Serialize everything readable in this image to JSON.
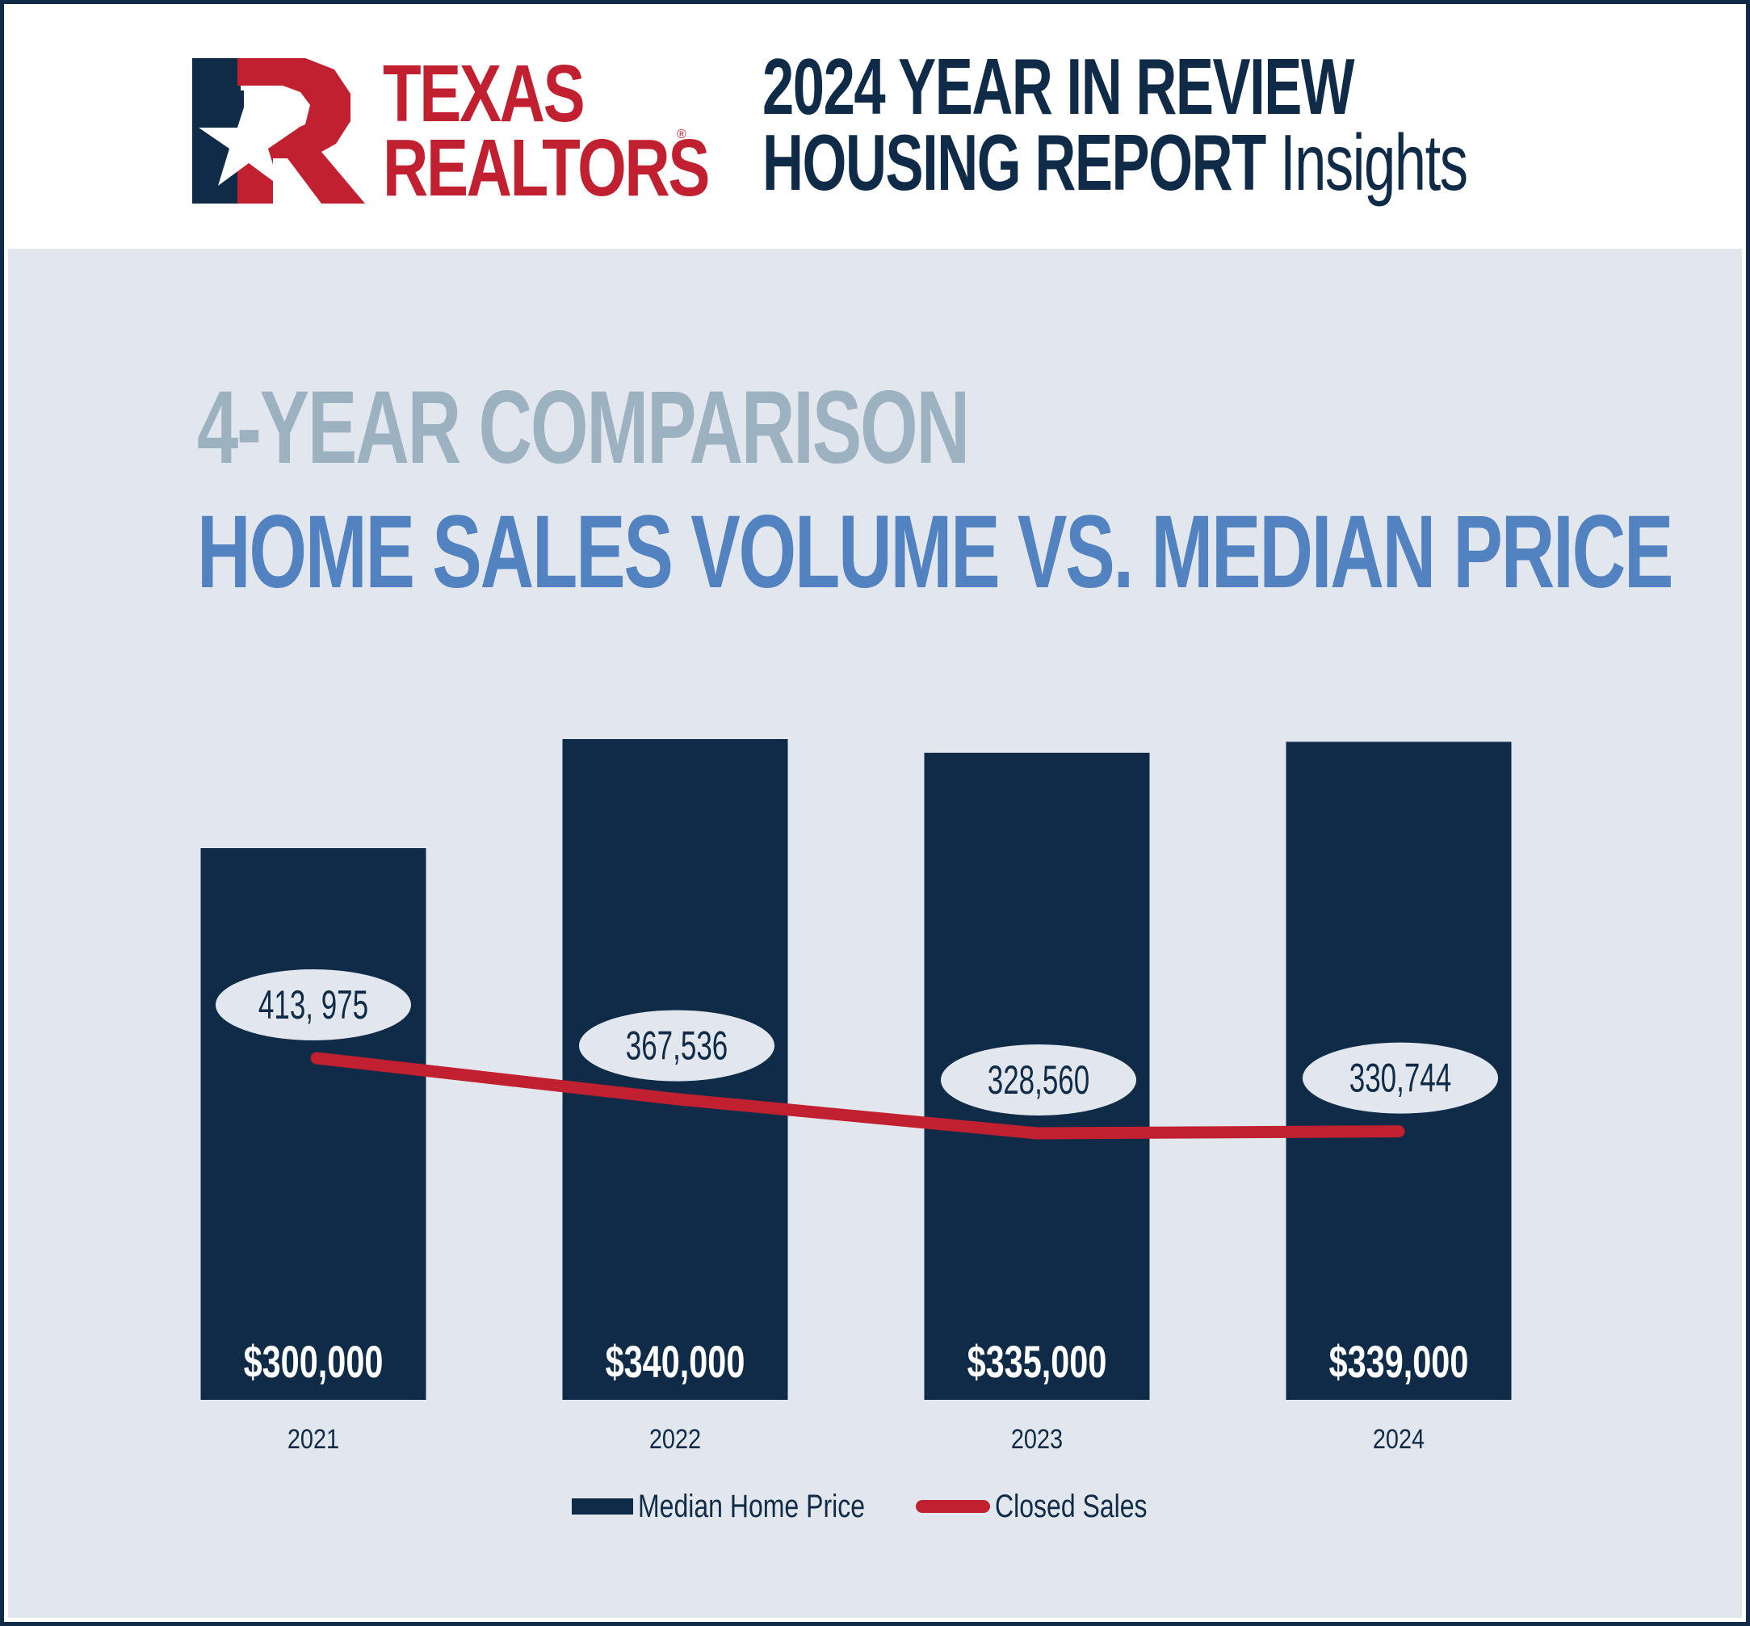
{
  "brand": {
    "logo_line1": "TEXAS",
    "logo_line2": "REALTORS",
    "registered_mark": "®",
    "colors": {
      "navy": "#0f2b47",
      "red": "#c0202f"
    }
  },
  "header": {
    "line1": "2024 YEAR IN REVIEW",
    "line2_main": "HOUSING REPORT",
    "line2_suffix": "Insights"
  },
  "kicker": "4-YEAR COMPARISON",
  "chart_title": "HOME SALES VOLUME VS. MEDIAN PRICE",
  "chart_data": {
    "type": "bar",
    "title": "HOME SALES VOLUME VS. MEDIAN PRICE",
    "categories": [
      "2021",
      "2022",
      "2023",
      "2024"
    ],
    "series": [
      {
        "name": "Median Home Price",
        "type": "bar",
        "values": [
          300000,
          340000,
          335000,
          339000
        ],
        "labels": [
          "$300,000",
          "$340,000",
          "$335,000",
          "$339,000"
        ],
        "color": "#0f2b47"
      },
      {
        "name": "Closed Sales",
        "type": "line",
        "values": [
          413975,
          367536,
          328560,
          330744
        ],
        "labels": [
          "413, 975",
          "367,536",
          "328,560",
          "330,744"
        ],
        "color": "#c0202f"
      }
    ],
    "legend_position": "bottom-center",
    "grid": false
  },
  "legend": {
    "bar_label": "Median Home Price",
    "line_label": "Closed Sales"
  }
}
